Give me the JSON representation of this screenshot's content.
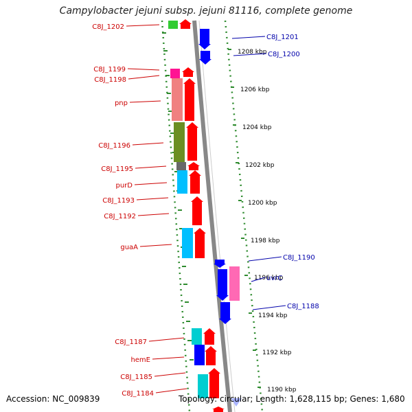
{
  "title": "Campylobacter jejuni subsp. jejuni 81116, complete genome",
  "accession": "Accession: NC_009839",
  "summary": "Topology: circular; Length: 1,628,115 bp; Genes: 1,680",
  "colors": {
    "forward_arrow": "#ff0000",
    "reverse_arrow": "#0000ff",
    "left_label": "#cc0000",
    "right_label": "#0000aa",
    "backbone": "#888888",
    "dotted_track": "#2e8b2e",
    "cog_colors": [
      "#33cc33",
      "#ff1493",
      "#f08080",
      "#6b8e23",
      "#696969",
      "#00bfff",
      "#00ced1",
      "#0000ff",
      "#ff69b4"
    ]
  },
  "ticks": [
    "1208 kbp",
    "1206 kbp",
    "1204 kbp",
    "1202 kbp",
    "1200 kbp",
    "1198 kbp",
    "1196 kbp",
    "1194 kbp",
    "1192 kbp",
    "1190 kbp"
  ],
  "left_labels": [
    "C8J_1202",
    "C8J_1199",
    "C8J_1198",
    "pnp",
    "C8J_1196",
    "C8J_1195",
    "purD",
    "C8J_1193",
    "C8J_1192",
    "guaA",
    "C8J_1187",
    "hemE",
    "C8J_1185",
    "C8J_1184"
  ],
  "right_labels": [
    "C8J_1201",
    "C8J_1200",
    "C8J_1190",
    "uvrC",
    "C8J_1188"
  ]
}
